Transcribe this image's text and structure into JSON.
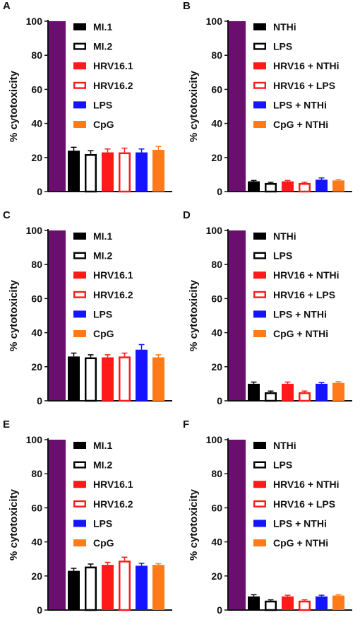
{
  "colors": {
    "purple": "#6a0f6e",
    "black": "#000000",
    "red": "#ff1a1a",
    "blue": "#1414ff",
    "orange": "#ff7a1a"
  },
  "chart_data": [
    {
      "panel": "A",
      "type": "bar",
      "ylabel": "% cytotoxicity",
      "ylim": [
        0,
        100
      ],
      "yticks": [
        0,
        20,
        40,
        60,
        80,
        100
      ],
      "control_value": 100,
      "series": [
        {
          "name": "MI.1",
          "value": 24,
          "error": 2,
          "color": "#000000",
          "fill": "solid"
        },
        {
          "name": "MI.2",
          "value": 22,
          "error": 2,
          "color": "#000000",
          "fill": "open"
        },
        {
          "name": "HRV16.1",
          "value": 23,
          "error": 2,
          "color": "#ff1a1a",
          "fill": "solid"
        },
        {
          "name": "HRV16.2",
          "value": 23,
          "error": 2.5,
          "color": "#ff1a1a",
          "fill": "open"
        },
        {
          "name": "LPS",
          "value": 23,
          "error": 2,
          "color": "#1414ff",
          "fill": "solid"
        },
        {
          "name": "CpG",
          "value": 24.5,
          "error": 2,
          "color": "#ff7a1a",
          "fill": "solid"
        }
      ]
    },
    {
      "panel": "B",
      "type": "bar",
      "ylabel": "% cytotoxicity",
      "ylim": [
        0,
        100
      ],
      "yticks": [
        0,
        20,
        40,
        60,
        80,
        100
      ],
      "control_value": 100,
      "series": [
        {
          "name": "NTHi",
          "value": 6,
          "error": 0.5,
          "color": "#000000",
          "fill": "solid"
        },
        {
          "name": "LPS",
          "value": 5,
          "error": 0.5,
          "color": "#000000",
          "fill": "open"
        },
        {
          "name": "HRV16 + NTHi",
          "value": 6,
          "error": 0.5,
          "color": "#ff1a1a",
          "fill": "solid"
        },
        {
          "name": "HRV16 + LPS",
          "value": 5,
          "error": 0.5,
          "color": "#ff1a1a",
          "fill": "open"
        },
        {
          "name": "LPS + NTHi",
          "value": 7,
          "error": 1,
          "color": "#1414ff",
          "fill": "solid"
        },
        {
          "name": "CpG + NTHi",
          "value": 6.5,
          "error": 0.5,
          "color": "#ff7a1a",
          "fill": "solid"
        }
      ]
    },
    {
      "panel": "C",
      "type": "bar",
      "ylabel": "% cytotoxicity",
      "ylim": [
        0,
        100
      ],
      "yticks": [
        0,
        20,
        40,
        60,
        80,
        100
      ],
      "control_value": 100,
      "series": [
        {
          "name": "MI.1",
          "value": 26,
          "error": 2,
          "color": "#000000",
          "fill": "solid"
        },
        {
          "name": "MI.2",
          "value": 25.5,
          "error": 1.5,
          "color": "#000000",
          "fill": "open"
        },
        {
          "name": "HRV16.1",
          "value": 25.5,
          "error": 1.5,
          "color": "#ff1a1a",
          "fill": "solid"
        },
        {
          "name": "HRV16.2",
          "value": 26,
          "error": 2,
          "color": "#ff1a1a",
          "fill": "open"
        },
        {
          "name": "LPS",
          "value": 30,
          "error": 3,
          "color": "#1414ff",
          "fill": "solid"
        },
        {
          "name": "CpG",
          "value": 25.5,
          "error": 1.5,
          "color": "#ff7a1a",
          "fill": "solid"
        }
      ]
    },
    {
      "panel": "D",
      "type": "bar",
      "ylabel": "% cytotoxicity",
      "ylim": [
        0,
        100
      ],
      "yticks": [
        0,
        20,
        40,
        60,
        80,
        100
      ],
      "control_value": 100,
      "series": [
        {
          "name": "NTHi",
          "value": 10,
          "error": 1,
          "color": "#000000",
          "fill": "solid"
        },
        {
          "name": "LPS",
          "value": 5,
          "error": 0.7,
          "color": "#000000",
          "fill": "open"
        },
        {
          "name": "HRV16 + NTHi",
          "value": 10,
          "error": 1,
          "color": "#ff1a1a",
          "fill": "solid"
        },
        {
          "name": "HRV16 + LPS",
          "value": 5,
          "error": 0.7,
          "color": "#ff1a1a",
          "fill": "open"
        },
        {
          "name": "LPS + NTHi",
          "value": 10,
          "error": 0.7,
          "color": "#1414ff",
          "fill": "solid"
        },
        {
          "name": "CpG + NTHi",
          "value": 10.5,
          "error": 0.7,
          "color": "#ff7a1a",
          "fill": "solid"
        }
      ]
    },
    {
      "panel": "E",
      "type": "bar",
      "ylabel": "% cytotoxicity",
      "ylim": [
        0,
        100
      ],
      "yticks": [
        0,
        20,
        40,
        60,
        80,
        100
      ],
      "control_value": 100,
      "series": [
        {
          "name": "MI.1",
          "value": 23,
          "error": 1.5,
          "color": "#000000",
          "fill": "solid"
        },
        {
          "name": "MI.2",
          "value": 25.5,
          "error": 1.5,
          "color": "#000000",
          "fill": "open"
        },
        {
          "name": "HRV16.1",
          "value": 26.5,
          "error": 1.5,
          "color": "#ff1a1a",
          "fill": "solid"
        },
        {
          "name": "HRV16.2",
          "value": 29,
          "error": 2,
          "color": "#ff1a1a",
          "fill": "open"
        },
        {
          "name": "LPS",
          "value": 26,
          "error": 1.5,
          "color": "#1414ff",
          "fill": "solid"
        },
        {
          "name": "CpG",
          "value": 26.5,
          "error": 0.7,
          "color": "#ff7a1a",
          "fill": "solid"
        }
      ]
    },
    {
      "panel": "F",
      "type": "bar",
      "ylabel": "% cytotoxicity",
      "ylim": [
        0,
        100
      ],
      "yticks": [
        0,
        20,
        40,
        60,
        80,
        100
      ],
      "control_value": 100,
      "series": [
        {
          "name": "NTHi",
          "value": 8,
          "error": 1,
          "color": "#000000",
          "fill": "solid"
        },
        {
          "name": "LPS",
          "value": 5.5,
          "error": 0.5,
          "color": "#000000",
          "fill": "open"
        },
        {
          "name": "HRV16 + NTHi",
          "value": 8,
          "error": 0.7,
          "color": "#ff1a1a",
          "fill": "solid"
        },
        {
          "name": "HRV16 + LPS",
          "value": 5.5,
          "error": 0.5,
          "color": "#ff1a1a",
          "fill": "open"
        },
        {
          "name": "LPS + NTHi",
          "value": 8,
          "error": 0.7,
          "color": "#1414ff",
          "fill": "solid"
        },
        {
          "name": "CpG + NTHi",
          "value": 8.5,
          "error": 0.5,
          "color": "#ff7a1a",
          "fill": "solid"
        }
      ]
    }
  ]
}
